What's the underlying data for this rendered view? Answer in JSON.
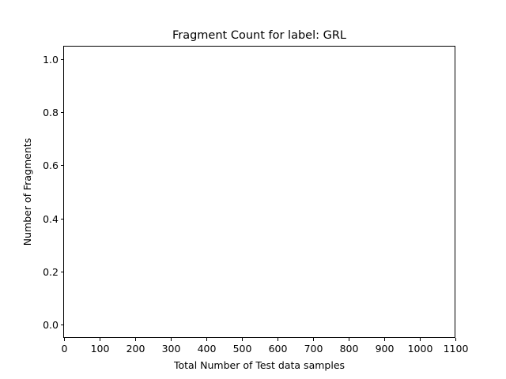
{
  "chart_data": {
    "type": "scatter",
    "title": "Fragment Count for label: GRL",
    "xlabel": "Total Number of Test data samples",
    "ylabel": "Number of Fragments",
    "xlim": [
      0,
      1100
    ],
    "ylim": [
      -0.05,
      1.05
    ],
    "xticks": [
      0,
      100,
      200,
      300,
      400,
      500,
      600,
      700,
      800,
      900,
      1000,
      1100
    ],
    "xtick_labels": [
      "0",
      "100",
      "200",
      "300",
      "400",
      "500",
      "600",
      "700",
      "800",
      "900",
      "1000",
      "1100"
    ],
    "yticks": [
      0.0,
      0.2,
      0.4,
      0.6,
      0.8,
      1.0
    ],
    "ytick_labels": [
      "0.0",
      "0.2",
      "0.4",
      "0.6",
      "0.8",
      "1.0"
    ],
    "grid": false,
    "series": [
      {
        "x": [],
        "y": []
      }
    ]
  }
}
